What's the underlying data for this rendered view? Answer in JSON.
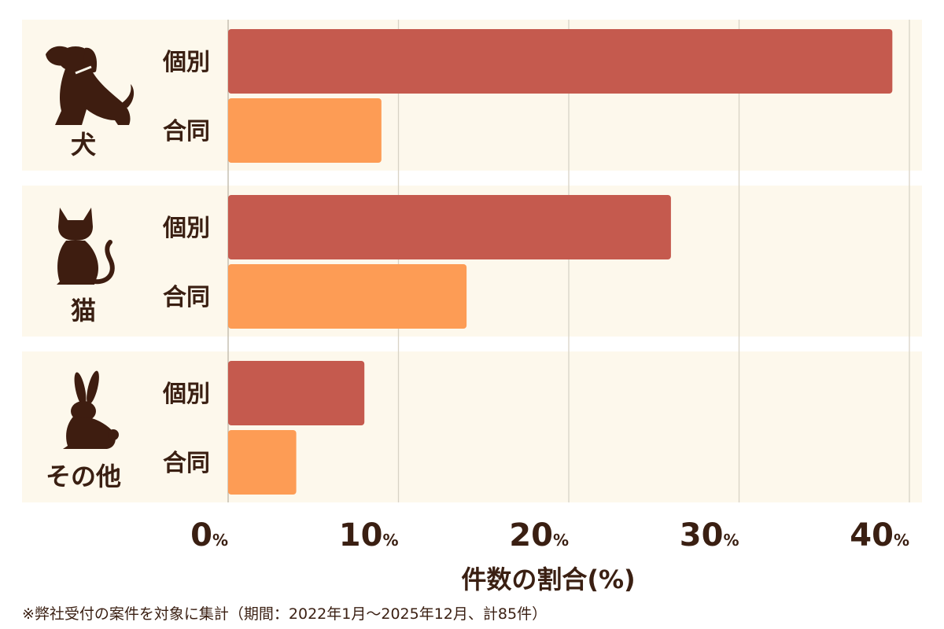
{
  "chart_data": {
    "type": "bar",
    "orientation": "horizontal",
    "groups": [
      {
        "label": "犬",
        "icon": "dog-icon",
        "bars": [
          {
            "label": "個別",
            "value": 39
          },
          {
            "label": "合同",
            "value": 9
          }
        ]
      },
      {
        "label": "猫",
        "icon": "cat-icon",
        "bars": [
          {
            "label": "個別",
            "value": 26
          },
          {
            "label": "合同",
            "value": 14
          }
        ]
      },
      {
        "label": "その他",
        "icon": "rabbit-icon",
        "bars": [
          {
            "label": "個別",
            "value": 8
          },
          {
            "label": "合同",
            "value": 4
          }
        ]
      }
    ],
    "xlim": [
      0,
      40
    ],
    "xticks": [
      0,
      10,
      20,
      30,
      40
    ],
    "tick_unit": "%",
    "xlabel": "件数の割合(%)",
    "grid": true,
    "colors": {
      "個別": "#c55a4e",
      "合同": "#fd9c55",
      "panel": "#fdf8ec",
      "grid": "#d8d3c6"
    }
  },
  "footnote": "※弊社受付の案件を対象に集計（期間：2022年1月～2025年12月、計85件）"
}
